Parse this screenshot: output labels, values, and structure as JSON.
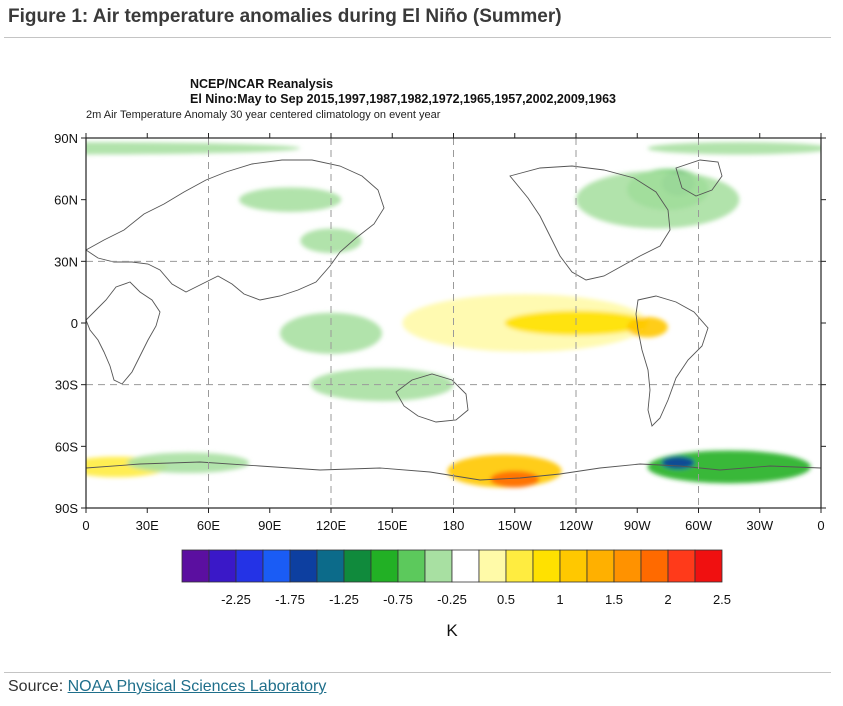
{
  "figure": {
    "title": "Figure 1: Air temperature anomalies during El Niño (Summer)",
    "source_label": "Source: ",
    "source_link": "NOAA Physical Sciences Laboratory"
  },
  "map": {
    "header_line1": "NCEP/NCAR Reanalysis",
    "header_line2": "El Nino:May to Sep 2015,1997,1987,1982,1972,1965,1957,2002,2009,1963",
    "subtitle": "2m Air Temperature Anomaly 30 year centered climatology on event year",
    "lat_labels": [
      {
        "text": "90N",
        "lat": 90
      },
      {
        "text": "60N",
        "lat": 60
      },
      {
        "text": "30N",
        "lat": 30
      },
      {
        "text": "0",
        "lat": 0
      },
      {
        "text": "30S",
        "lat": -30
      },
      {
        "text": "60S",
        "lat": -60
      },
      {
        "text": "90S",
        "lat": -90
      }
    ],
    "lon_labels": [
      {
        "text": "0",
        "lon": 0
      },
      {
        "text": "30E",
        "lon": 30
      },
      {
        "text": "60E",
        "lon": 60
      },
      {
        "text": "90E",
        "lon": 90
      },
      {
        "text": "120E",
        "lon": 120
      },
      {
        "text": "150E",
        "lon": 150
      },
      {
        "text": "180",
        "lon": 180
      },
      {
        "text": "150W",
        "lon": 210
      },
      {
        "text": "120W",
        "lon": 240
      },
      {
        "text": "90W",
        "lon": 270
      },
      {
        "text": "60W",
        "lon": 300
      },
      {
        "text": "30W",
        "lon": 330
      },
      {
        "text": "0",
        "lon": 360
      }
    ],
    "colorbar": {
      "unit": "K",
      "colors": [
        "#5b0fa0",
        "#3a18c8",
        "#2433e6",
        "#1a5cf5",
        "#0d3fa0",
        "#0c6b8a",
        "#108a3c",
        "#22b025",
        "#5cc95c",
        "#a8e0a2",
        "#ffffff",
        "#fffaa8",
        "#ffec40",
        "#ffe100",
        "#ffc800",
        "#ffb000",
        "#ff9200",
        "#ff6a00",
        "#ff3a1a",
        "#f01010"
      ],
      "labels": [
        {
          "text": "-2.25",
          "edge": 2
        },
        {
          "text": "-1.75",
          "edge": 4
        },
        {
          "text": "-1.25",
          "edge": 6
        },
        {
          "text": "-0.75",
          "edge": 8
        },
        {
          "text": "-0.25",
          "edge": 10
        },
        {
          "text": "0.5",
          "edge": 12
        },
        {
          "text": "1",
          "edge": 14
        },
        {
          "text": "1.5",
          "edge": 16
        },
        {
          "text": "2",
          "edge": 18
        },
        {
          "text": "2.5",
          "edge": 20
        }
      ]
    },
    "anomaly_regions": [
      {
        "name": "arctic-cool-band",
        "lon": 0,
        "lat": 85,
        "rlon": 105,
        "rlat": 3,
        "level": "-0.25",
        "color": "#a8e0a2"
      },
      {
        "name": "arctic-cool-band-east",
        "lon": 320,
        "lat": 85,
        "rlon": 45,
        "rlat": 3,
        "level": "-0.25",
        "color": "#a8e0a2"
      },
      {
        "name": "north-america-cool",
        "lon": 285,
        "lat": 65,
        "rlon": 20,
        "rlat": 10,
        "level": "-0.75",
        "color": "#5cc95c"
      },
      {
        "name": "north-america-cool-core",
        "lon": 290,
        "lat": 68,
        "rlon": 8,
        "rlat": 6,
        "level": "-1.25",
        "color": "#108a3c"
      },
      {
        "name": "canada-cool-outer",
        "lon": 280,
        "lat": 60,
        "rlon": 40,
        "rlat": 14,
        "level": "-0.25",
        "color": "#a8e0a2"
      },
      {
        "name": "asia-cool",
        "lon": 120,
        "lat": 40,
        "rlon": 15,
        "rlat": 6,
        "level": "-0.25",
        "color": "#a8e0a2"
      },
      {
        "name": "siberia-cool",
        "lon": 100,
        "lat": 60,
        "rlon": 25,
        "rlat": 6,
        "level": "-0.25",
        "color": "#a8e0a2"
      },
      {
        "name": "indonesia-cool",
        "lon": 120,
        "lat": -5,
        "rlon": 25,
        "rlat": 10,
        "level": "-0.25",
        "color": "#a8e0a2"
      },
      {
        "name": "south-pacific-cool",
        "lon": 145,
        "lat": -30,
        "rlon": 35,
        "rlat": 8,
        "level": "-0.25",
        "color": "#a8e0a2"
      },
      {
        "name": "equatorial-pacific-warm",
        "lon": 215,
        "lat": 0,
        "rlon": 60,
        "rlat": 14,
        "level": "0.5",
        "color": "#fffaa8"
      },
      {
        "name": "equatorial-pacific-warm-core",
        "lon": 240,
        "lat": 0,
        "rlon": 35,
        "rlat": 6,
        "level": "1",
        "color": "#ffe100"
      },
      {
        "name": "peru-warm",
        "lon": 275,
        "lat": -2,
        "rlon": 10,
        "rlat": 5,
        "level": "1.5",
        "color": "#ffc800"
      },
      {
        "name": "antarctic-atlantic-warm",
        "lon": 15,
        "lat": -70,
        "rlon": 25,
        "rlat": 5,
        "level": "0.5",
        "color": "#ffec40"
      },
      {
        "name": "antarctic-indian-cool",
        "lon": 50,
        "lat": -68,
        "rlon": 30,
        "rlat": 5,
        "level": "-0.25",
        "color": "#a8e0a2"
      },
      {
        "name": "ross-sea-warm",
        "lon": 205,
        "lat": -72,
        "rlon": 28,
        "rlat": 8,
        "level": "1",
        "color": "#ffc800"
      },
      {
        "name": "ross-sea-warm-core",
        "lon": 210,
        "lat": -76,
        "rlon": 12,
        "rlat": 4,
        "level": "2",
        "color": "#ff6a00"
      },
      {
        "name": "weddell-cool",
        "lon": 315,
        "lat": -70,
        "rlon": 40,
        "rlat": 8,
        "level": "-0.75",
        "color": "#22b025"
      },
      {
        "name": "weddell-cool-core",
        "lon": 290,
        "lat": -68,
        "rlon": 8,
        "rlat": 3,
        "level": "-1.75",
        "color": "#0d3fa0"
      }
    ]
  }
}
